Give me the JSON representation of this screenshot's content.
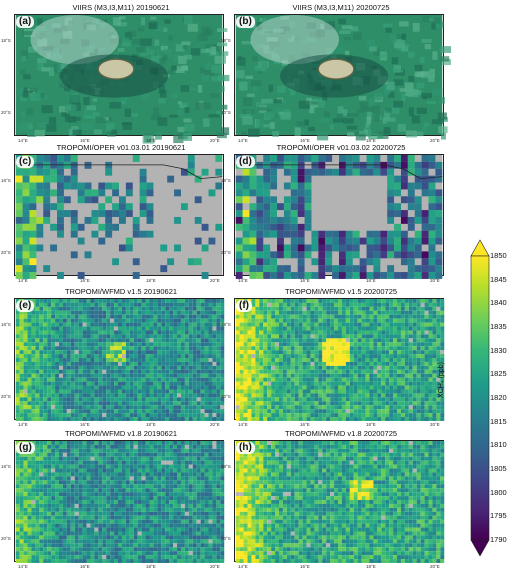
{
  "panels": [
    {
      "letter": "(a)",
      "title": "VIIRS (M3,I3,M11)  20190621",
      "kind": "rgb",
      "seed": 3
    },
    {
      "letter": "(b)",
      "title": "VIIRS (M3,I3,M11)  20200725",
      "kind": "rgb",
      "seed": 7
    },
    {
      "letter": "(c)",
      "title": "TROPOMI/OPER v01.03.01  20190621",
      "kind": "oper1",
      "seed": 11
    },
    {
      "letter": "(d)",
      "title": "TROPOMI/OPER v01.03.02  20200725",
      "kind": "oper2",
      "seed": 19
    },
    {
      "letter": "(e)",
      "title": "TROPOMI/WFMD v1.5  20190621",
      "kind": "wfmd1",
      "seed": 23
    },
    {
      "letter": "(f)",
      "title": "TROPOMI/WFMD v1.5  20200725",
      "kind": "wfmd2",
      "seed": 29
    },
    {
      "letter": "(g)",
      "title": "TROPOMI/WFMD v1.8  20190621",
      "kind": "wfmd3",
      "seed": 31
    },
    {
      "letter": "(h)",
      "title": "TROPOMI/WFMD v1.8  20200725",
      "kind": "wfmd4",
      "seed": 37
    }
  ],
  "axis_labels": {
    "lat": [
      "18°S",
      "20°S"
    ],
    "lon": [
      "14°E",
      "16°E",
      "18°E",
      "20°E"
    ]
  },
  "colorbar": {
    "label": "XCH₄ (ppb)",
    "ticks": [
      "1850",
      "1845",
      "1840",
      "1835",
      "1830",
      "1825",
      "1820",
      "1815",
      "1810",
      "1805",
      "1800",
      "1795",
      "1790"
    ],
    "colors": [
      "#440154",
      "#482878",
      "#3e4989",
      "#31688e",
      "#26828e",
      "#1f9e89",
      "#35b779",
      "#6ece58",
      "#b5de2b",
      "#fde725"
    ],
    "missing_color": "#b3b3b3"
  }
}
